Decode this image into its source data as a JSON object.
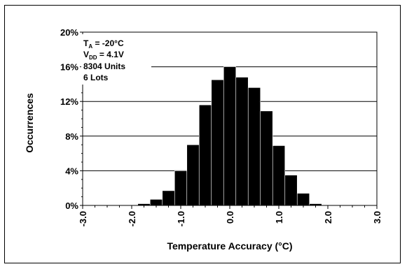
{
  "chart_data": {
    "type": "bar",
    "title": "",
    "xlabel": "Temperature Accuracy (°C)",
    "ylabel": "Occurrences",
    "xlim": [
      -3.0,
      3.0
    ],
    "ylim": [
      0,
      20
    ],
    "bin_width": 0.25,
    "bin_edges": [
      -1.875,
      -1.625,
      -1.375,
      -1.125,
      -0.875,
      -0.625,
      -0.375,
      -0.125,
      0.125,
      0.375,
      0.625,
      0.875,
      1.125,
      1.375,
      1.625,
      1.875
    ],
    "values": [
      0.2,
      0.7,
      1.7,
      4.0,
      7.0,
      11.6,
      14.5,
      16.0,
      14.8,
      13.6,
      10.9,
      6.9,
      3.5,
      1.4,
      0.2
    ],
    "x_ticks": [
      "-3.0",
      "-2.0",
      "-1.0",
      "0.0",
      "1.0",
      "2.0",
      "3.0"
    ],
    "x_tick_values": [
      -3,
      -2,
      -1,
      0,
      1,
      2,
      3
    ],
    "y_ticks": [
      "0%",
      "4%",
      "8%",
      "12%",
      "16%",
      "20%"
    ],
    "y_tick_values": [
      0,
      4,
      8,
      12,
      16,
      20
    ],
    "grid": true,
    "bar_color": "#000000",
    "annotation": {
      "line1_main": "T",
      "line1_sub": "A",
      "line1_rest": " = -20°C",
      "line2_main": "V",
      "line2_sub": "DD",
      "line2_rest": " = 4.1V",
      "line3": "8304 Units",
      "line4": "6 Lots"
    }
  }
}
